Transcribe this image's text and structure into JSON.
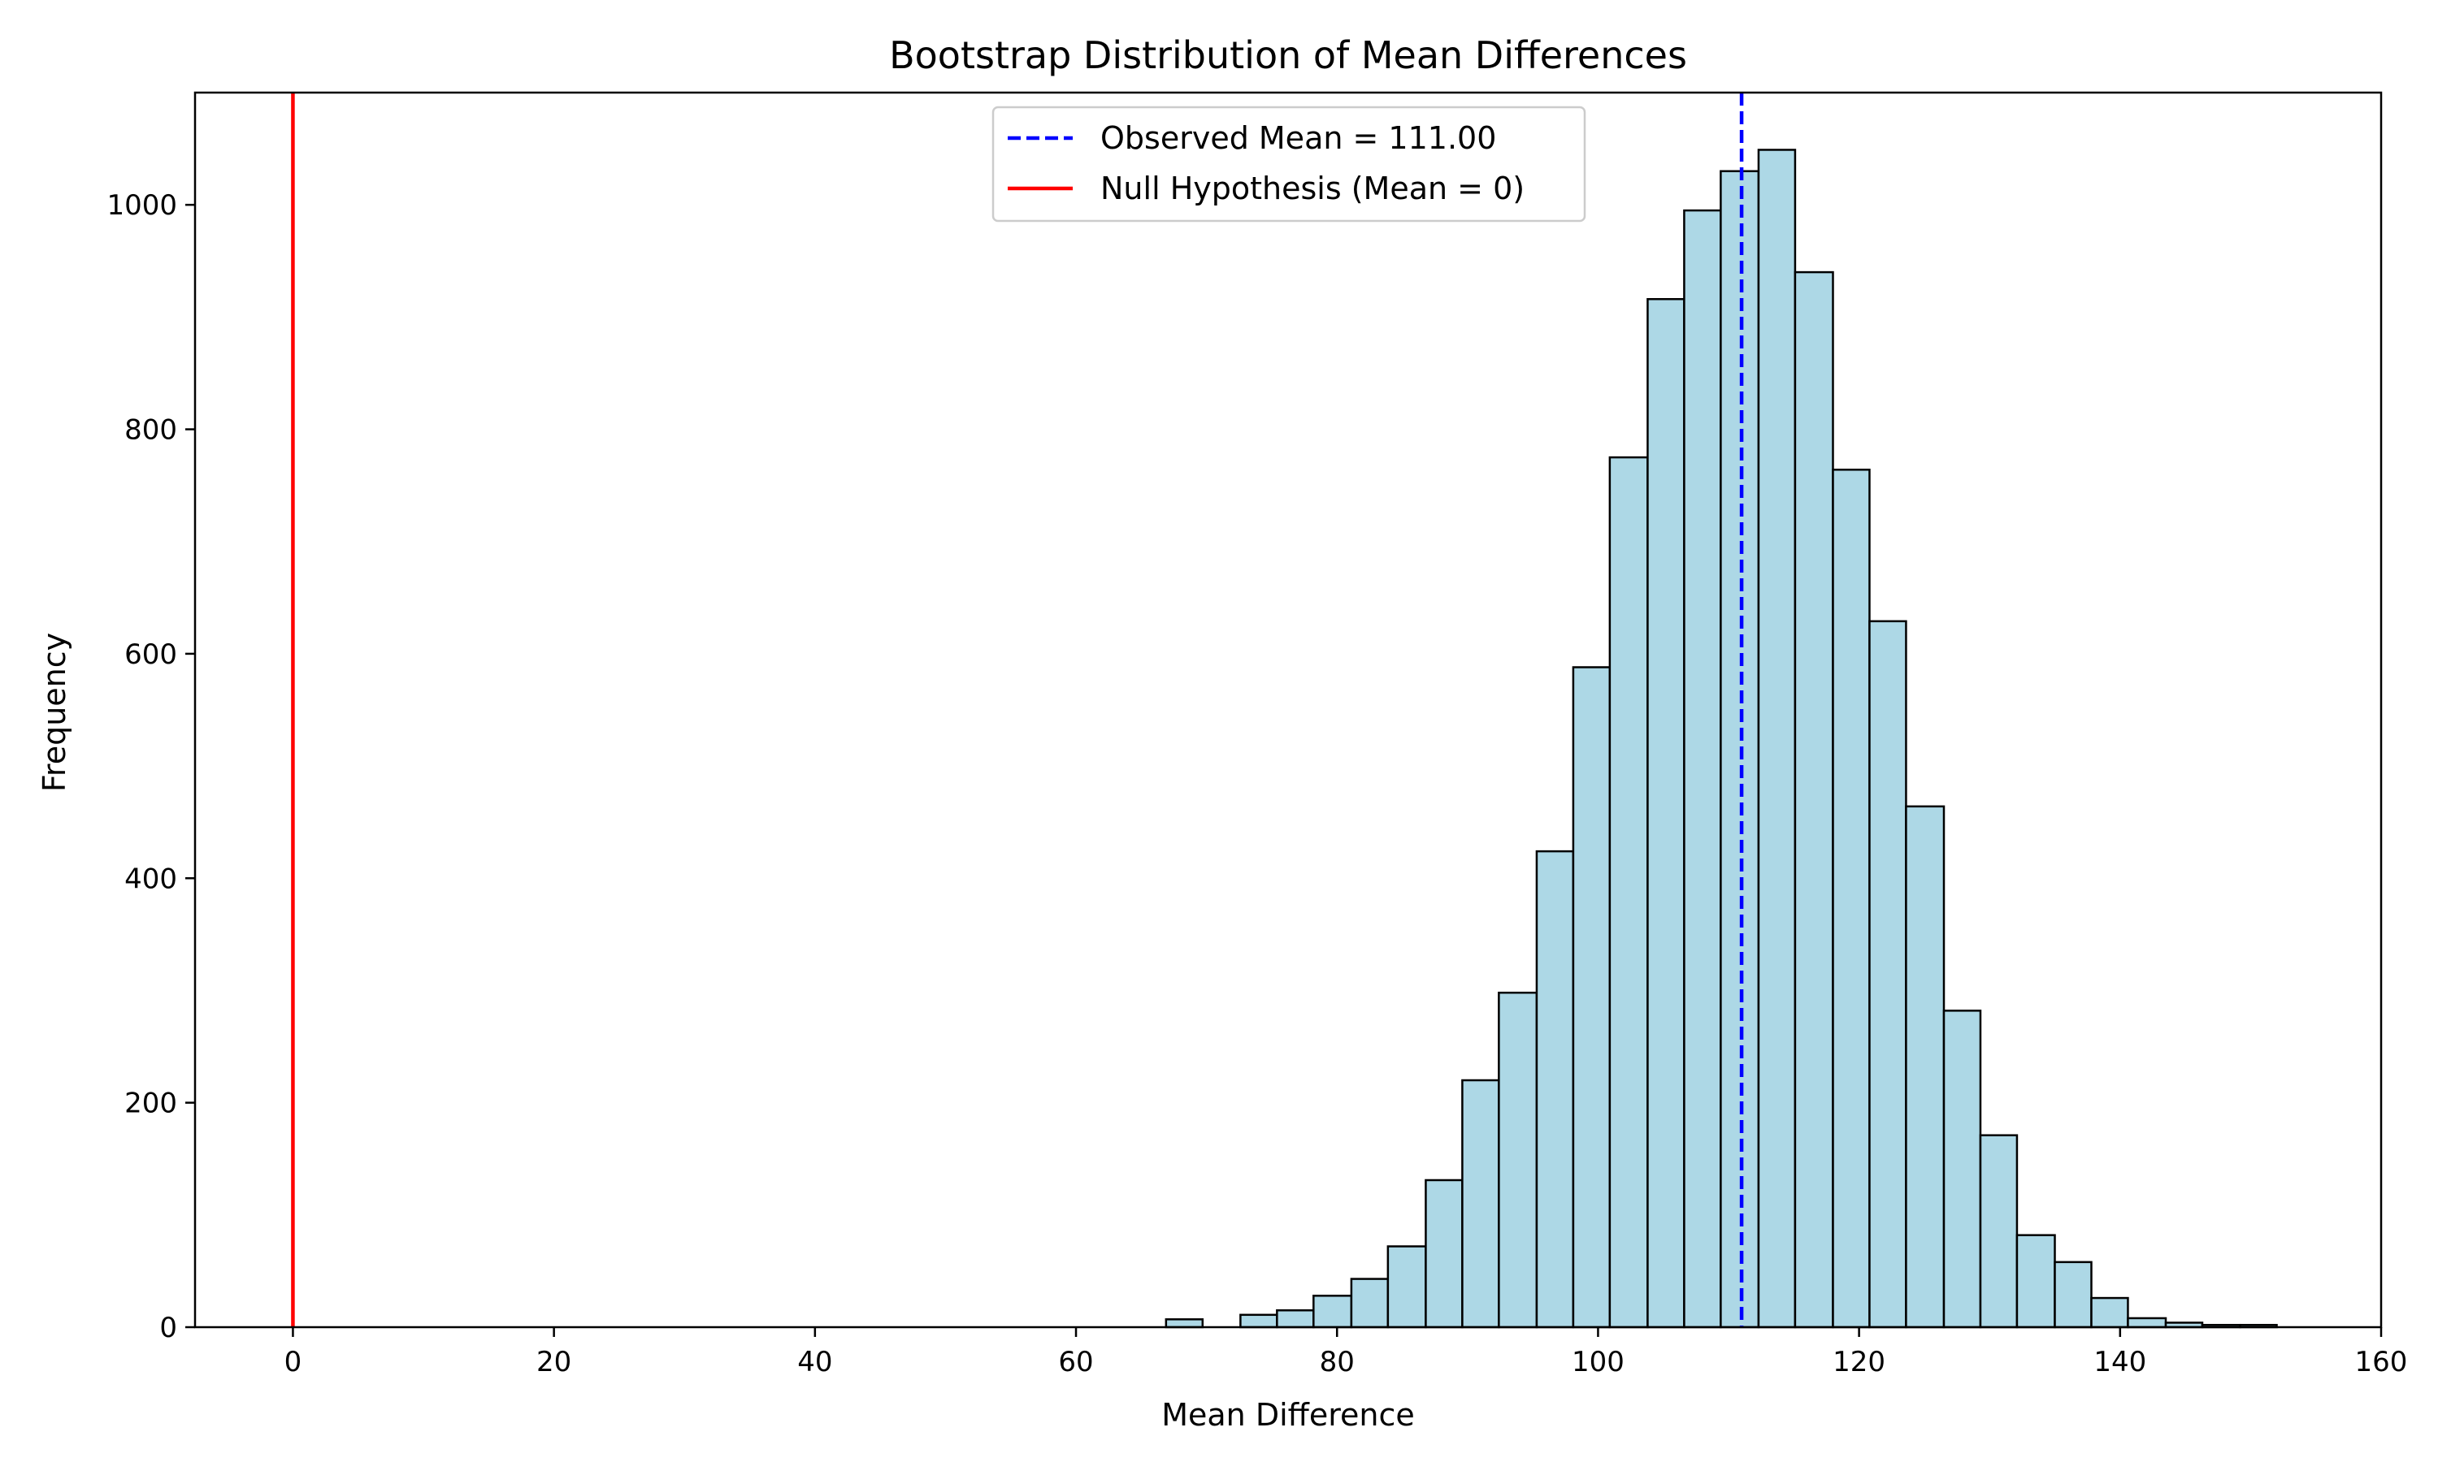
{
  "chart_data": {
    "type": "bar",
    "title": "Bootstrap Distribution of Mean Differences",
    "xlabel": "Mean Difference",
    "ylabel": "Frequency",
    "xlim": [
      -7.5,
      160
    ],
    "ylim": [
      0,
      1100
    ],
    "xticks": [
      0,
      20,
      40,
      60,
      80,
      100,
      120,
      140,
      160
    ],
    "yticks": [
      0,
      200,
      400,
      600,
      800,
      1000
    ],
    "bar_color": "#add8e6",
    "bar_edge_color": "#000000",
    "bins": [
      {
        "start": 66.9,
        "end": 69.7,
        "count": 7
      },
      {
        "start": 69.7,
        "end": 72.6,
        "count": 0
      },
      {
        "start": 72.6,
        "end": 75.4,
        "count": 11
      },
      {
        "start": 75.4,
        "end": 78.2,
        "count": 15
      },
      {
        "start": 78.2,
        "end": 81.1,
        "count": 28
      },
      {
        "start": 81.1,
        "end": 83.9,
        "count": 43
      },
      {
        "start": 83.9,
        "end": 86.8,
        "count": 72
      },
      {
        "start": 86.8,
        "end": 89.6,
        "count": 131
      },
      {
        "start": 89.6,
        "end": 92.4,
        "count": 220
      },
      {
        "start": 92.4,
        "end": 95.3,
        "count": 298
      },
      {
        "start": 95.3,
        "end": 98.1,
        "count": 424
      },
      {
        "start": 98.1,
        "end": 100.9,
        "count": 588
      },
      {
        "start": 100.9,
        "end": 103.8,
        "count": 775
      },
      {
        "start": 103.8,
        "end": 106.6,
        "count": 916
      },
      {
        "start": 106.6,
        "end": 109.4,
        "count": 995
      },
      {
        "start": 109.4,
        "end": 112.3,
        "count": 1030
      },
      {
        "start": 112.3,
        "end": 115.1,
        "count": 1049
      },
      {
        "start": 115.1,
        "end": 118.0,
        "count": 940
      },
      {
        "start": 118.0,
        "end": 120.8,
        "count": 764
      },
      {
        "start": 120.8,
        "end": 123.6,
        "count": 629
      },
      {
        "start": 123.6,
        "end": 126.5,
        "count": 464
      },
      {
        "start": 126.5,
        "end": 129.3,
        "count": 282
      },
      {
        "start": 129.3,
        "end": 132.1,
        "count": 171
      },
      {
        "start": 132.1,
        "end": 135.0,
        "count": 82
      },
      {
        "start": 135.0,
        "end": 137.8,
        "count": 58
      },
      {
        "start": 137.8,
        "end": 140.6,
        "count": 26
      },
      {
        "start": 140.6,
        "end": 143.5,
        "count": 8
      },
      {
        "start": 143.5,
        "end": 146.3,
        "count": 4
      },
      {
        "start": 146.3,
        "end": 149.2,
        "count": 2
      },
      {
        "start": 149.2,
        "end": 152.0,
        "count": 2
      }
    ],
    "reference_lines": [
      {
        "x": 111.0,
        "label": "Observed Mean = 111.00",
        "color": "#0000ff",
        "style": "dashed"
      },
      {
        "x": 0,
        "label": "Null Hypothesis (Mean = 0)",
        "color": "#ff0000",
        "style": "solid"
      }
    ],
    "legend_position": "upper center",
    "grid": false
  }
}
